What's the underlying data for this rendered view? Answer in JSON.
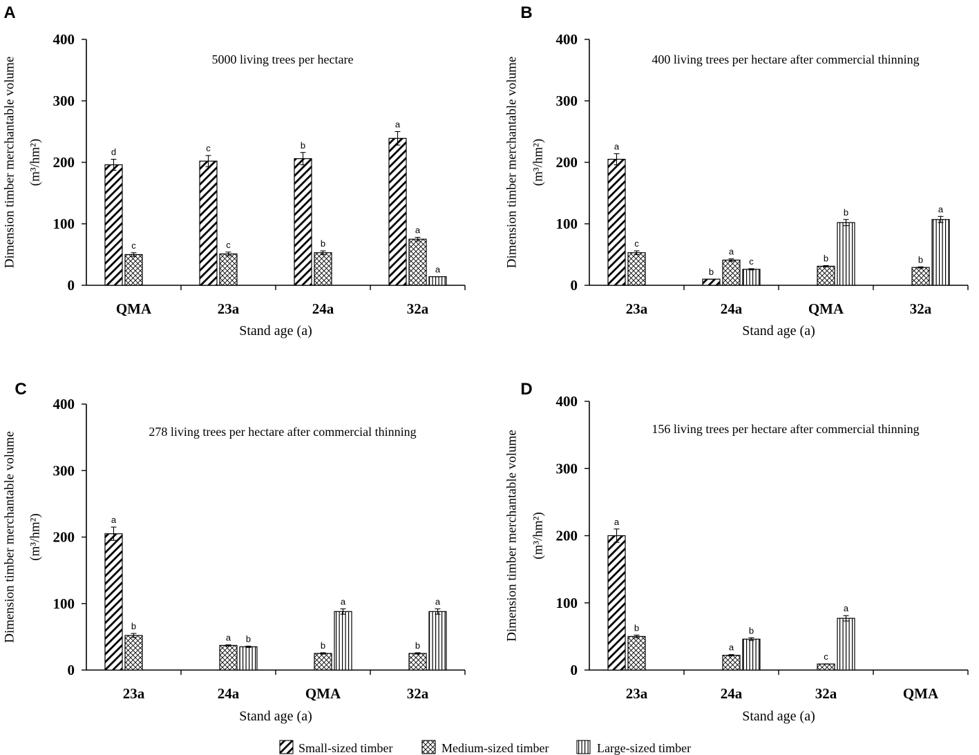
{
  "legend": {
    "items": [
      {
        "label": "Small-sized timber",
        "pattern": "small"
      },
      {
        "label": "Medium-sized timber",
        "pattern": "medium"
      },
      {
        "label": "Large-sized timber",
        "pattern": "large"
      }
    ]
  },
  "chart_data": [
    {
      "type": "bar",
      "panel": "A",
      "title": "5000 living trees per hectare",
      "xlabel": "Stand age (a)",
      "ylabel_line1": "Dimension timber merchantable volume",
      "ylabel_unit": "(m³/hm²)",
      "ylim": [
        0,
        400
      ],
      "yticks": [
        0,
        100,
        200,
        300,
        400
      ],
      "categories": [
        "QMA",
        "23a",
        "24a",
        "32a"
      ],
      "series": [
        {
          "name": "Small-sized timber",
          "pattern": "small",
          "values": [
            196,
            202,
            206,
            239
          ],
          "errors": [
            9,
            9,
            10,
            11
          ],
          "letters": [
            "d",
            "c",
            "b",
            "a"
          ]
        },
        {
          "name": "Medium-sized timber",
          "pattern": "medium",
          "values": [
            50,
            51,
            53,
            75
          ],
          "errors": [
            3,
            3,
            3,
            3
          ],
          "letters": [
            "c",
            "c",
            "b",
            "a"
          ]
        },
        {
          "name": "Large-sized timber",
          "pattern": "large",
          "values": [
            null,
            null,
            null,
            14
          ],
          "errors": [
            null,
            null,
            null,
            0
          ],
          "letters": [
            "",
            "",
            "",
            "a"
          ]
        }
      ]
    },
    {
      "type": "bar",
      "panel": "B",
      "title": "400 living trees per hectare after commercial thinning",
      "xlabel": "Stand age (a)",
      "ylabel_line1": "Dimension timber merchantable volume",
      "ylabel_unit": "(m³/hm²)",
      "ylim": [
        0,
        400
      ],
      "yticks": [
        0,
        100,
        200,
        300,
        400
      ],
      "categories": [
        "23a",
        "24a",
        "QMA",
        "32a"
      ],
      "series": [
        {
          "name": "Small-sized timber",
          "pattern": "small",
          "values": [
            205,
            10,
            null,
            null
          ],
          "errors": [
            9,
            0,
            null,
            null
          ],
          "letters": [
            "a",
            "b",
            "",
            ""
          ]
        },
        {
          "name": "Medium-sized timber",
          "pattern": "medium",
          "values": [
            53,
            41,
            31,
            29
          ],
          "errors": [
            3,
            2,
            1,
            1
          ],
          "letters": [
            "c",
            "a",
            "b",
            "b"
          ]
        },
        {
          "name": "Large-sized timber",
          "pattern": "large",
          "values": [
            null,
            26,
            102,
            107
          ],
          "errors": [
            null,
            1,
            5,
            5
          ],
          "letters": [
            "",
            "c",
            "b",
            "a"
          ]
        }
      ]
    },
    {
      "type": "bar",
      "panel": "C",
      "title": "278 living trees per hectare after commercial thinning",
      "xlabel": "Stand age (a)",
      "ylabel_line1": "Dimension timber merchantable volume",
      "ylabel_unit": "(m³/hm²)",
      "ylim": [
        0,
        400
      ],
      "yticks": [
        0,
        100,
        200,
        300,
        400
      ],
      "categories": [
        "23a",
        "24a",
        "QMA",
        "32a"
      ],
      "series": [
        {
          "name": "Small-sized timber",
          "pattern": "small",
          "values": [
            205,
            null,
            null,
            null
          ],
          "errors": [
            10,
            null,
            null,
            null
          ],
          "letters": [
            "a",
            "",
            "",
            ""
          ]
        },
        {
          "name": "Medium-sized timber",
          "pattern": "medium",
          "values": [
            52,
            37,
            25,
            25
          ],
          "errors": [
            3,
            1,
            1,
            1
          ],
          "letters": [
            "b",
            "a",
            "b",
            "b"
          ]
        },
        {
          "name": "Large-sized timber",
          "pattern": "large",
          "values": [
            null,
            35,
            88,
            88
          ],
          "errors": [
            null,
            1,
            4,
            4
          ],
          "letters": [
            "",
            "b",
            "a",
            "a"
          ]
        }
      ]
    },
    {
      "type": "bar",
      "panel": "D",
      "title": "156 living trees per hectare after commercial thinning",
      "xlabel": "Stand age (a)",
      "ylabel_line1": "Dimension timber merchantable volume",
      "ylabel_unit": "(m³/hm²)",
      "ylim": [
        0,
        400
      ],
      "yticks": [
        0,
        100,
        200,
        300,
        400
      ],
      "categories": [
        "23a",
        "24a",
        "32a",
        "QMA"
      ],
      "series": [
        {
          "name": "Small-sized timber",
          "pattern": "small",
          "values": [
            200,
            null,
            null,
            null
          ],
          "errors": [
            10,
            null,
            null,
            null
          ],
          "letters": [
            "a",
            "",
            "",
            ""
          ]
        },
        {
          "name": "Medium-sized timber",
          "pattern": "medium",
          "values": [
            50,
            22,
            9,
            null
          ],
          "errors": [
            2,
            1,
            0,
            null
          ],
          "letters": [
            "b",
            "a",
            "c",
            ""
          ]
        },
        {
          "name": "Large-sized timber",
          "pattern": "large",
          "values": [
            null,
            46,
            77,
            null
          ],
          "errors": [
            null,
            2,
            4,
            null
          ],
          "letters": [
            "",
            "b",
            "a",
            ""
          ]
        }
      ]
    }
  ]
}
